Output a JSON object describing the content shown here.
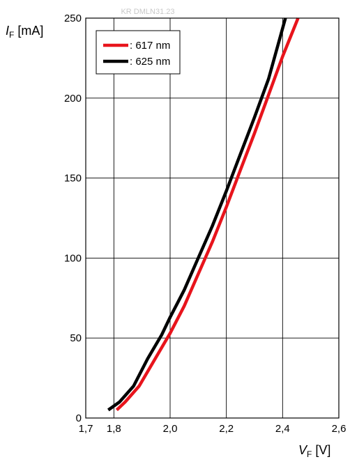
{
  "chart_data": {
    "type": "line",
    "watermark": "KR DMLN31.23",
    "ylabel": {
      "symbol": "I",
      "subscript": "F",
      "unit": " [mA]"
    },
    "xlabel": {
      "symbol": "V",
      "subscript": "F",
      "unit": " [V]"
    },
    "xlim": [
      1.7,
      2.6
    ],
    "ylim": [
      0,
      250
    ],
    "x_ticks": [
      1.7,
      1.8,
      2.0,
      2.2,
      2.4,
      2.6
    ],
    "x_tick_labels": [
      "1,7",
      "1,8",
      "2,0",
      "2,2",
      "2,4",
      "2,6"
    ],
    "y_ticks": [
      0,
      50,
      100,
      150,
      200,
      250
    ],
    "y_tick_labels": [
      "0",
      "50",
      "100",
      "150",
      "200",
      "250"
    ],
    "grid": true,
    "legend_position": "top-left",
    "series": [
      {
        "name": ": 617 nm",
        "color": "#e8141c",
        "x": [
          1.81,
          1.84,
          1.89,
          1.94,
          2.0,
          2.05,
          2.1,
          2.15,
          2.2,
          2.25,
          2.3,
          2.35,
          2.4,
          2.455
        ],
        "y": [
          5,
          10,
          20,
          35,
          53,
          70,
          90,
          110,
          132,
          155,
          178,
          202,
          226,
          250
        ]
      },
      {
        "name": ": 625 nm",
        "color": "#000000",
        "x": [
          1.78,
          1.82,
          1.87,
          1.92,
          1.97,
          2.0,
          2.05,
          2.1,
          2.15,
          2.2,
          2.25,
          2.3,
          2.35,
          2.41
        ],
        "y": [
          5,
          10,
          20,
          37,
          52,
          63,
          80,
          100,
          120,
          142,
          165,
          188,
          212,
          250
        ]
      }
    ]
  }
}
